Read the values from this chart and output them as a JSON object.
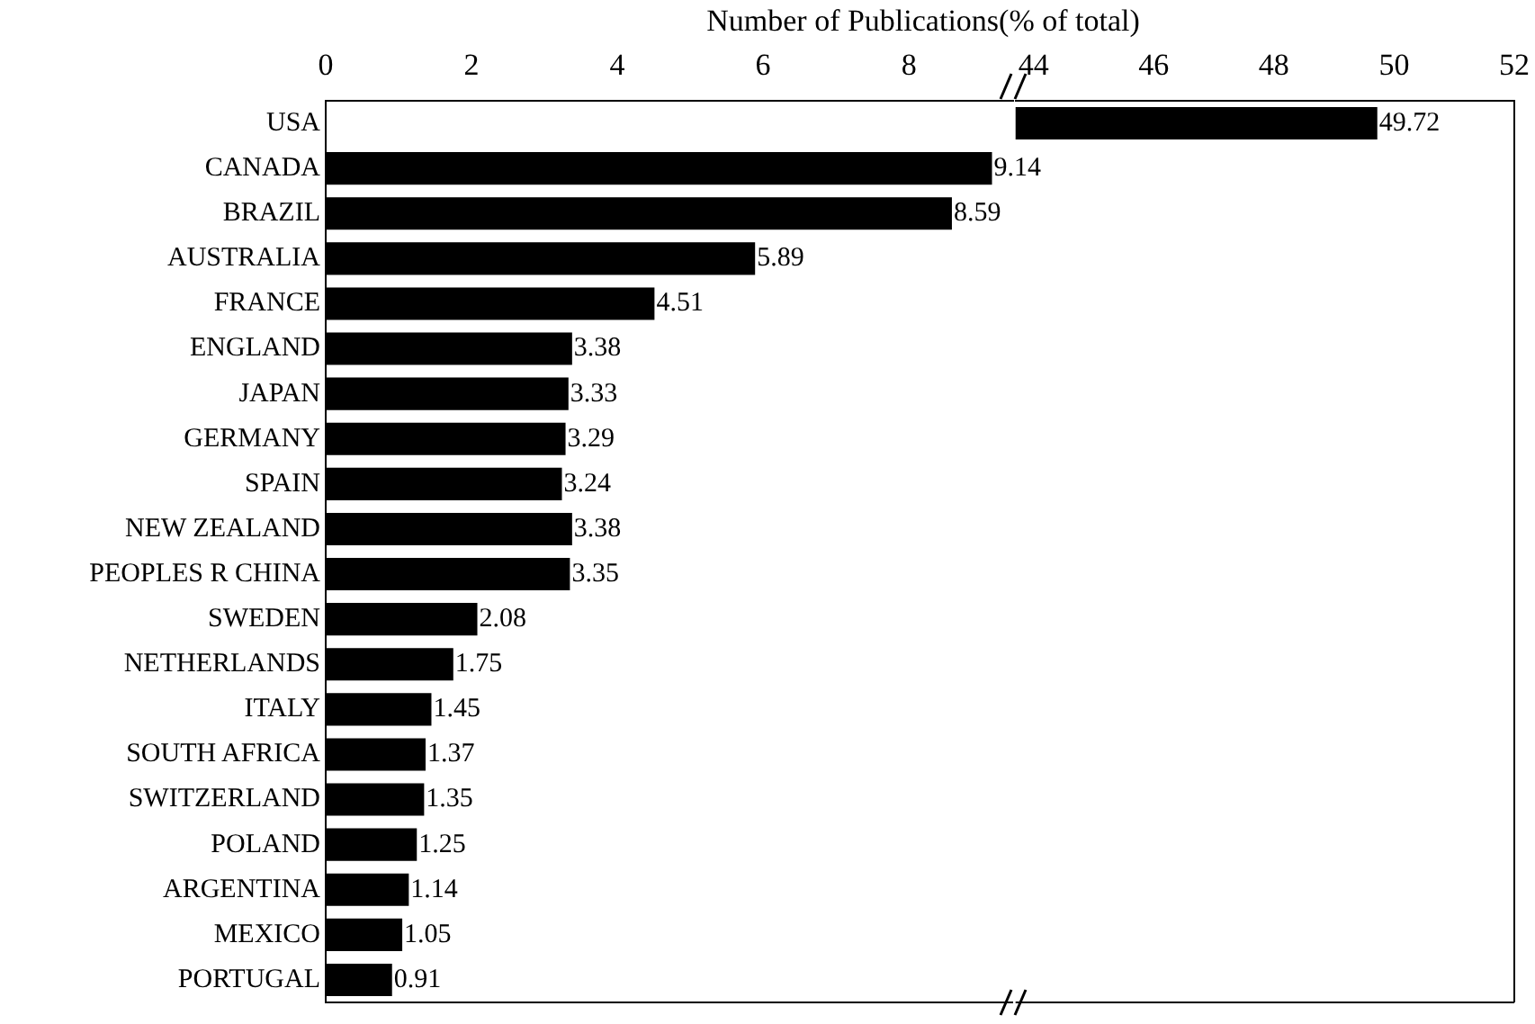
{
  "chart_data": [
    {
      "type": "bar",
      "orientation": "horizontal",
      "xlabel": "Number of Publications(% of total)",
      "categories": [
        "USA",
        "CANADA",
        "BRAZIL",
        "AUSTRALIA",
        "FRANCE",
        "ENGLAND",
        "JAPAN",
        "GERMANY",
        "SPAIN",
        "NEW ZEALAND",
        "PEOPLES R CHINA",
        "SWEDEN",
        "NETHERLANDS",
        "ITALY",
        "SOUTH AFRICA",
        "SWITZERLAND",
        "POLAND",
        "ARGENTINA",
        "MEXICO",
        "PORTUGAL"
      ],
      "values": [
        null,
        9.14,
        8.59,
        5.89,
        4.51,
        3.38,
        3.33,
        3.29,
        3.24,
        3.38,
        3.35,
        2.08,
        1.75,
        1.45,
        1.37,
        1.35,
        1.25,
        1.14,
        1.05,
        0.91
      ],
      "color": "#000000",
      "xlim": [
        0,
        9.43
      ],
      "xticks": [
        0,
        2,
        4,
        6,
        8
      ],
      "data_labels": true,
      "grid": false
    },
    {
      "type": "bar",
      "orientation": "horizontal",
      "categories": [
        null,
        null,
        null,
        null,
        null,
        null,
        null,
        null,
        null,
        null,
        null,
        null,
        null,
        null,
        null,
        null,
        null,
        null,
        null,
        null
      ],
      "values": [
        49.72,
        null,
        null,
        null,
        null,
        null,
        null,
        null,
        null,
        null,
        null,
        null,
        null,
        null,
        null,
        null,
        null,
        null,
        null,
        null
      ],
      "color": "#000000",
      "xlim": [
        43.7,
        52
      ],
      "xticks": [
        44,
        46,
        48,
        50,
        52
      ],
      "data_labels": true,
      "grid": false,
      "tick_labels": "x"
    }
  ]
}
